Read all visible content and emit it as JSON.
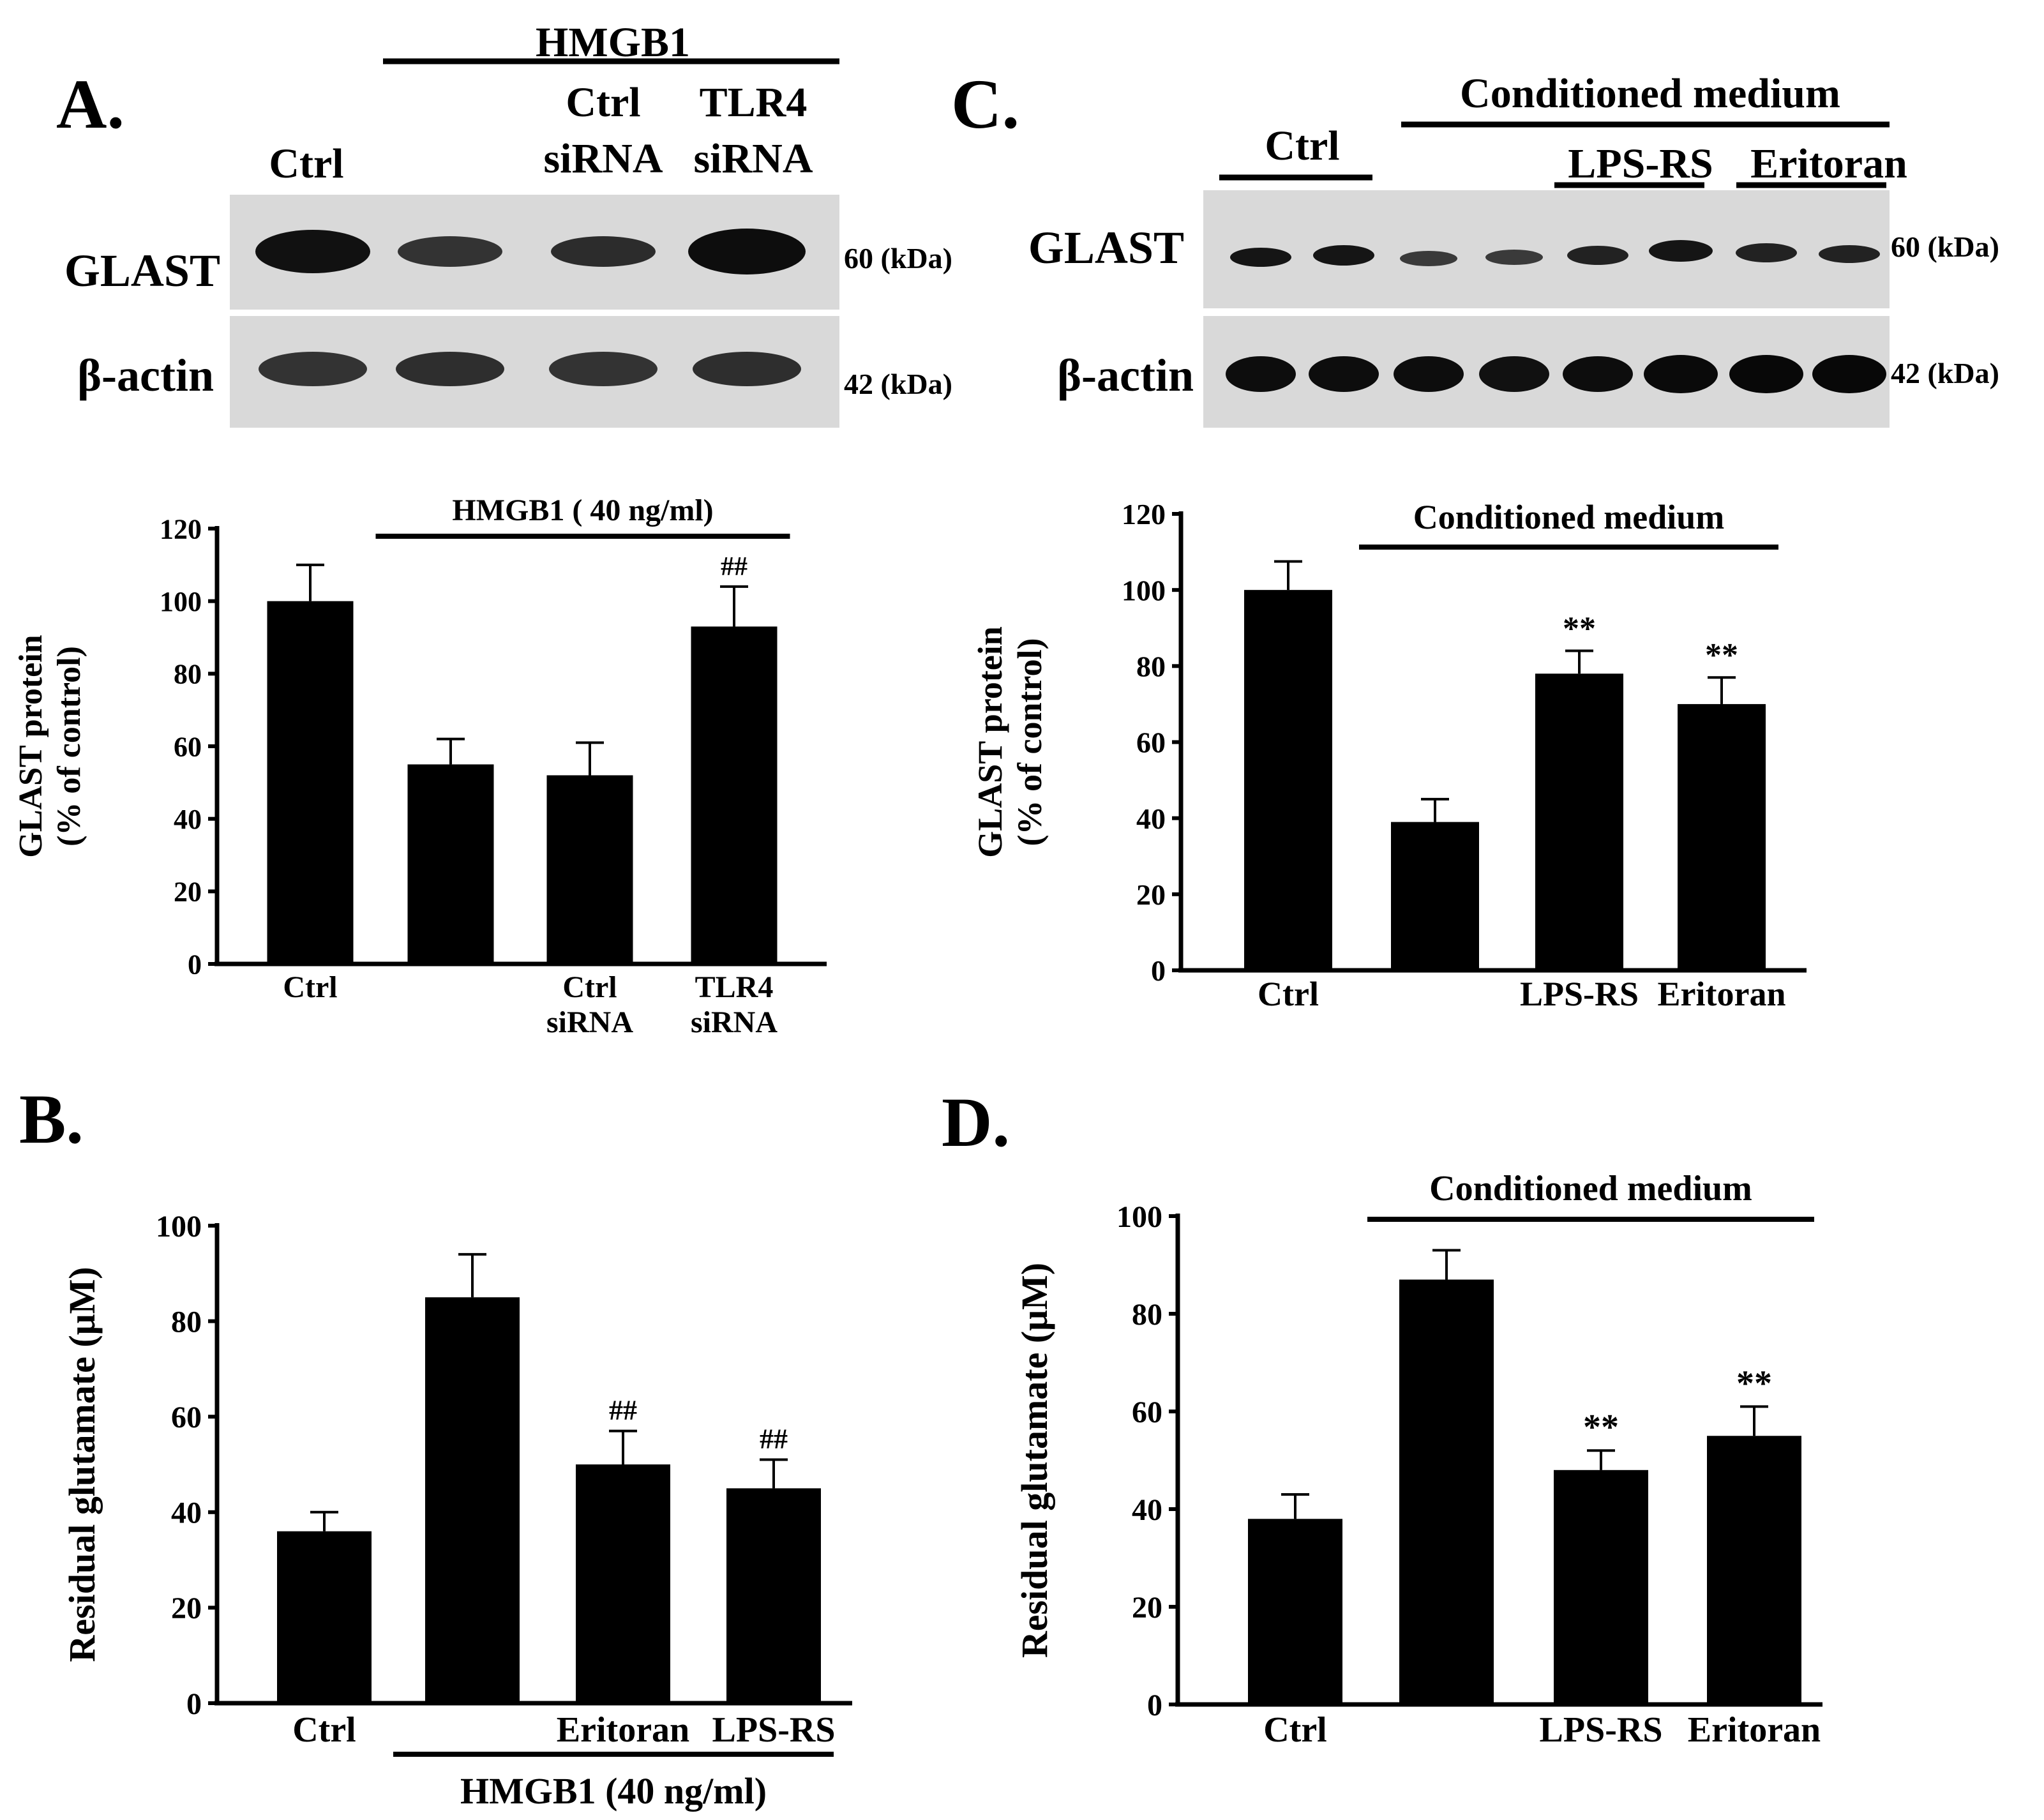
{
  "colors": {
    "bar": "#000000",
    "blot_bg": "#d9d9d9",
    "band": "#111111"
  },
  "panel_labels": {
    "a": "A.",
    "b": "B.",
    "c": "C.",
    "d": "D."
  },
  "blot_a": {
    "group_header": "HMGB1",
    "lanes": [
      {
        "line1": "",
        "line2": "Ctrl"
      },
      {
        "line1": "",
        "line2": ""
      },
      {
        "line1": "Ctrl",
        "line2": "siRNA"
      },
      {
        "line1": "TLR4",
        "line2": "siRNA"
      }
    ],
    "rows": [
      {
        "label": "GLAST",
        "kda": "60 (kDa)"
      },
      {
        "label": "β-actin",
        "kda": "42 (kDa)"
      }
    ]
  },
  "blot_c": {
    "group_header": "Conditioned medium",
    "ctrl_label": "Ctrl",
    "sub_groups": [
      "LPS-RS",
      "Eritoran"
    ],
    "rows": [
      {
        "label": "GLAST",
        "kda": "60 (kDa)"
      },
      {
        "label": "β-actin",
        "kda": "42 (kDa)"
      }
    ]
  },
  "chart_data": [
    {
      "panel": "A",
      "type": "bar",
      "categories": [
        [
          "Ctrl"
        ],
        [],
        [
          "Ctrl",
          "siRNA"
        ],
        [
          "TLR4",
          "siRNA"
        ]
      ],
      "values": [
        100,
        55,
        52,
        93
      ],
      "errors": [
        10,
        7,
        9,
        11
      ],
      "annotations": [
        "",
        "",
        "",
        "##"
      ],
      "ylabel": [
        "GLAST protein",
        "(% of control)"
      ],
      "ylim": [
        0,
        120
      ],
      "yticks": [
        0,
        20,
        40,
        60,
        80,
        100,
        120
      ],
      "group_bar": {
        "label": "HMGB1 ( 40 ng/ml)",
        "position": "top",
        "span": [
          1,
          3
        ]
      }
    },
    {
      "panel": "B",
      "type": "bar",
      "categories": [
        [
          "Ctrl"
        ],
        [],
        [
          "Eritoran"
        ],
        [
          "LPS-RS"
        ]
      ],
      "values": [
        36,
        85,
        50,
        45
      ],
      "errors": [
        4,
        9,
        7,
        6
      ],
      "annotations": [
        "",
        "",
        "##",
        "##"
      ],
      "ylabel": [
        "Residual glutamate (μM)"
      ],
      "ylim": [
        0,
        100
      ],
      "yticks": [
        0,
        20,
        40,
        60,
        80,
        100
      ],
      "group_bar": {
        "label": "HMGB1 (40 ng/ml)",
        "position": "bottom",
        "span": [
          1,
          3
        ]
      }
    },
    {
      "panel": "C",
      "type": "bar",
      "categories": [
        [
          "Ctrl"
        ],
        [],
        [
          "LPS-RS"
        ],
        [
          "Eritoran"
        ]
      ],
      "values": [
        100,
        39,
        78,
        70
      ],
      "errors": [
        7.5,
        6,
        6,
        7
      ],
      "annotations": [
        "",
        "",
        "**",
        "**"
      ],
      "ylabel": [
        "GLAST protein",
        "(% of control)"
      ],
      "ylim": [
        0,
        120
      ],
      "yticks": [
        0,
        20,
        40,
        60,
        80,
        100,
        120
      ],
      "group_bar": {
        "label": "Conditioned medium",
        "position": "top",
        "span": [
          1,
          3
        ]
      }
    },
    {
      "panel": "D",
      "type": "bar",
      "categories": [
        [
          "Ctrl"
        ],
        [],
        [
          "LPS-RS"
        ],
        [
          "Eritoran"
        ]
      ],
      "values": [
        38,
        87,
        48,
        55
      ],
      "errors": [
        5,
        6,
        4,
        6
      ],
      "annotations": [
        "",
        "",
        "**",
        "**"
      ],
      "ylabel": [
        "Residual glutamate (μM)"
      ],
      "ylim": [
        0,
        100
      ],
      "yticks": [
        0,
        20,
        40,
        60,
        80,
        100
      ],
      "group_bar": {
        "label": "Conditioned medium",
        "position": "top",
        "span": [
          1,
          3
        ]
      }
    }
  ]
}
